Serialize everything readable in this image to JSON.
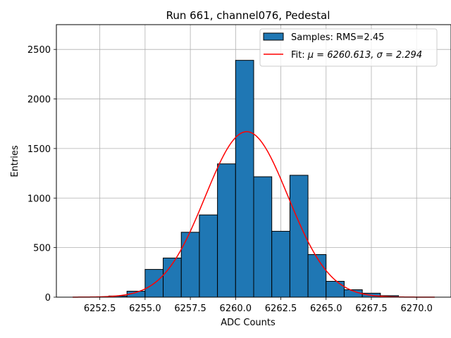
{
  "chart_data": {
    "type": "bar",
    "title": "Run 661, channel076, Pedestal",
    "xlabel": "ADC Counts",
    "ylabel": "Entries",
    "xlim": [
      6250.1,
      6271.9
    ],
    "ylim": [
      0,
      2750
    ],
    "grid": true,
    "legend_placement": "top-right",
    "bar_color": "#1f77b4",
    "fit_color": "#ff0000",
    "x_ticks": [
      6252.5,
      6255.0,
      6257.5,
      6260.0,
      6262.5,
      6265.0,
      6267.5,
      6270.0
    ],
    "x_tick_labels": [
      "6252.5",
      "6255.0",
      "6257.5",
      "6260.0",
      "6262.5",
      "6265.0",
      "6267.5",
      "6270.0"
    ],
    "y_ticks": [
      0,
      500,
      1000,
      1500,
      2000,
      2500
    ],
    "y_tick_labels": [
      "0",
      "500",
      "1000",
      "1500",
      "2000",
      "2500"
    ],
    "histogram": {
      "name": "Samples: RMS=2.45",
      "bin_edges": [
        6251,
        6252,
        6253,
        6254,
        6255,
        6256,
        6257,
        6258,
        6259,
        6260,
        6261,
        6262,
        6263,
        6264,
        6265,
        6266,
        6267,
        6268,
        6269,
        6270,
        6271
      ],
      "counts": [
        0,
        3,
        12,
        60,
        280,
        395,
        655,
        830,
        1345,
        2390,
        1215,
        665,
        1230,
        430,
        160,
        75,
        40,
        15,
        0,
        0
      ]
    },
    "fit": {
      "name_prefix": "Fit: ",
      "name_math": "μ = 6260.613, σ = 2.294",
      "mu": 6260.613,
      "sigma": 2.294,
      "amplitude": 1670,
      "x_range": [
        6251,
        6271
      ]
    }
  }
}
